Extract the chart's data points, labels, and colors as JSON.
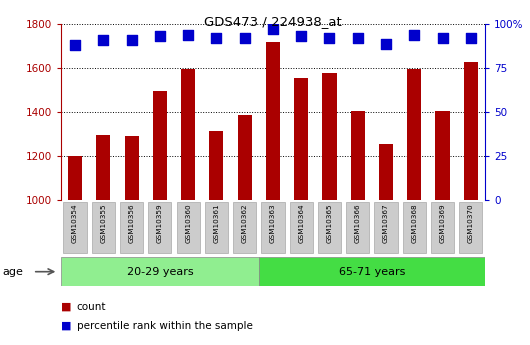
{
  "title": "GDS473 / 224938_at",
  "samples": [
    "GSM10354",
    "GSM10355",
    "GSM10356",
    "GSM10359",
    "GSM10360",
    "GSM10361",
    "GSM10362",
    "GSM10363",
    "GSM10364",
    "GSM10365",
    "GSM10366",
    "GSM10367",
    "GSM10368",
    "GSM10369",
    "GSM10370"
  ],
  "counts": [
    1200,
    1295,
    1290,
    1495,
    1595,
    1315,
    1385,
    1720,
    1555,
    1580,
    1405,
    1255,
    1595,
    1405,
    1630
  ],
  "percentiles": [
    88,
    91,
    91,
    93,
    94,
    92,
    92,
    97,
    93,
    92,
    92,
    89,
    94,
    92,
    92
  ],
  "group1_count": 7,
  "group2_count": 8,
  "group1_label": "20-29 years",
  "group2_label": "65-71 years",
  "age_label": "age",
  "ylim_left": [
    1000,
    1800
  ],
  "ylim_right": [
    0,
    100
  ],
  "yticks_left": [
    1000,
    1200,
    1400,
    1600,
    1800
  ],
  "yticks_right": [
    0,
    25,
    50,
    75,
    100
  ],
  "bar_color": "#aa0000",
  "dot_color": "#0000cc",
  "bg_color_plot": "#ffffff",
  "group1_bg": "#90EE90",
  "group2_bg": "#44DD44",
  "legend_count_label": "count",
  "legend_pct_label": "percentile rank within the sample",
  "bar_width": 0.5,
  "dot_size": 45
}
